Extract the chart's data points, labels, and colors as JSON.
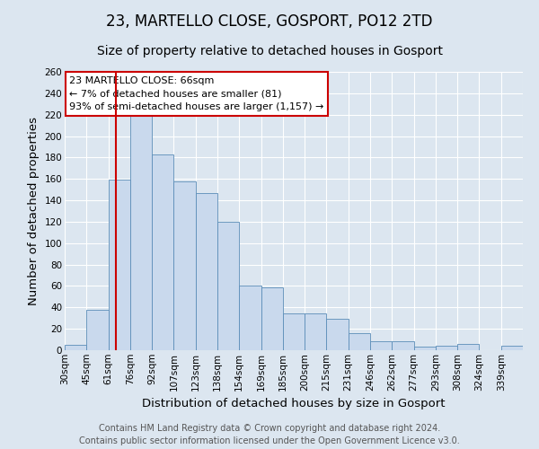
{
  "title": "23, MARTELLO CLOSE, GOSPORT, PO12 2TD",
  "subtitle": "Size of property relative to detached houses in Gosport",
  "xlabel": "Distribution of detached houses by size in Gosport",
  "ylabel": "Number of detached properties",
  "bins": [
    "30sqm",
    "45sqm",
    "61sqm",
    "76sqm",
    "92sqm",
    "107sqm",
    "123sqm",
    "138sqm",
    "154sqm",
    "169sqm",
    "185sqm",
    "200sqm",
    "215sqm",
    "231sqm",
    "246sqm",
    "262sqm",
    "277sqm",
    "293sqm",
    "308sqm",
    "324sqm",
    "339sqm"
  ],
  "bar_heights": [
    5,
    38,
    159,
    219,
    183,
    158,
    147,
    120,
    60,
    59,
    34,
    34,
    29,
    16,
    8,
    8,
    3,
    4,
    6,
    0,
    4
  ],
  "bar_color": "#c9d9ed",
  "bar_edge_color": "#5b8db8",
  "vline_color": "#cc0000",
  "ylim": [
    0,
    260
  ],
  "yticks": [
    0,
    20,
    40,
    60,
    80,
    100,
    120,
    140,
    160,
    180,
    200,
    220,
    240,
    260
  ],
  "annotation_title": "23 MARTELLO CLOSE: 66sqm",
  "annotation_line1": "← 7% of detached houses are smaller (81)",
  "annotation_line2": "93% of semi-detached houses are larger (1,157) →",
  "annotation_box_color": "#ffffff",
  "annotation_box_edge": "#cc0000",
  "footer1": "Contains HM Land Registry data © Crown copyright and database right 2024.",
  "footer2": "Contains public sector information licensed under the Open Government Licence v3.0.",
  "bg_color": "#dce6f0",
  "plot_bg_color": "#dce6f0",
  "title_fontsize": 12,
  "subtitle_fontsize": 10,
  "axis_label_fontsize": 9.5,
  "tick_fontsize": 7.5,
  "annotation_fontsize": 8,
  "footer_fontsize": 7
}
